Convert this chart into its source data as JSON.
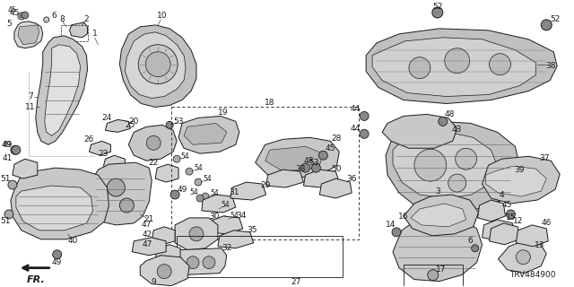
{
  "diagram_number": "TRV484900",
  "bg_color": "#f5f5f5",
  "line_color": "#1a1a1a",
  "label_color": "#1a1a1a",
  "figsize": [
    6.4,
    3.2
  ],
  "dpi": 100,
  "gray": "#888888",
  "darkgray": "#555555"
}
